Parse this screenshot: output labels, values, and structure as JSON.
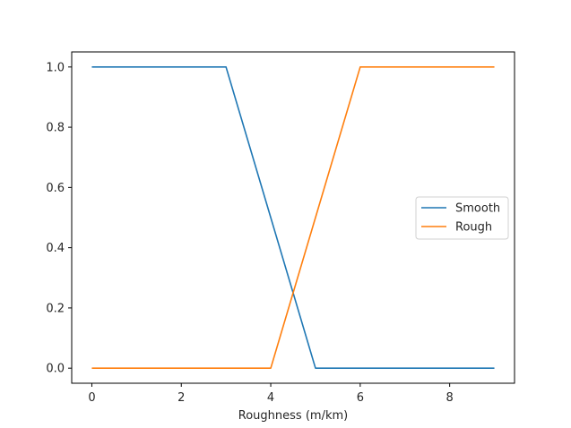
{
  "chart_data": {
    "type": "line",
    "title": "",
    "xlabel": "Roughness (m/km)",
    "ylabel": "",
    "xlim": [
      -0.45,
      9.45
    ],
    "ylim": [
      -0.05,
      1.05
    ],
    "xticks": [
      0,
      2,
      4,
      6,
      8
    ],
    "yticks": [
      0.0,
      0.2,
      0.4,
      0.6,
      0.8,
      1.0
    ],
    "xtick_labels": [
      "0",
      "2",
      "4",
      "6",
      "8"
    ],
    "ytick_labels": [
      "0.0",
      "0.2",
      "0.4",
      "0.6",
      "0.8",
      "1.0"
    ],
    "grid": false,
    "legend_position": "center-right",
    "series": [
      {
        "name": "Smooth",
        "color": "#1f77b4",
        "x": [
          0,
          1,
          2,
          3,
          4,
          5,
          6,
          7,
          8,
          9
        ],
        "y": [
          1,
          1,
          1,
          1,
          0.5,
          0,
          0,
          0,
          0,
          0
        ]
      },
      {
        "name": "Rough",
        "color": "#ff7f0e",
        "x": [
          0,
          1,
          2,
          3,
          4,
          5,
          6,
          7,
          8,
          9
        ],
        "y": [
          0,
          0,
          0,
          0,
          0,
          0.5,
          1,
          1,
          1,
          1
        ]
      }
    ]
  }
}
